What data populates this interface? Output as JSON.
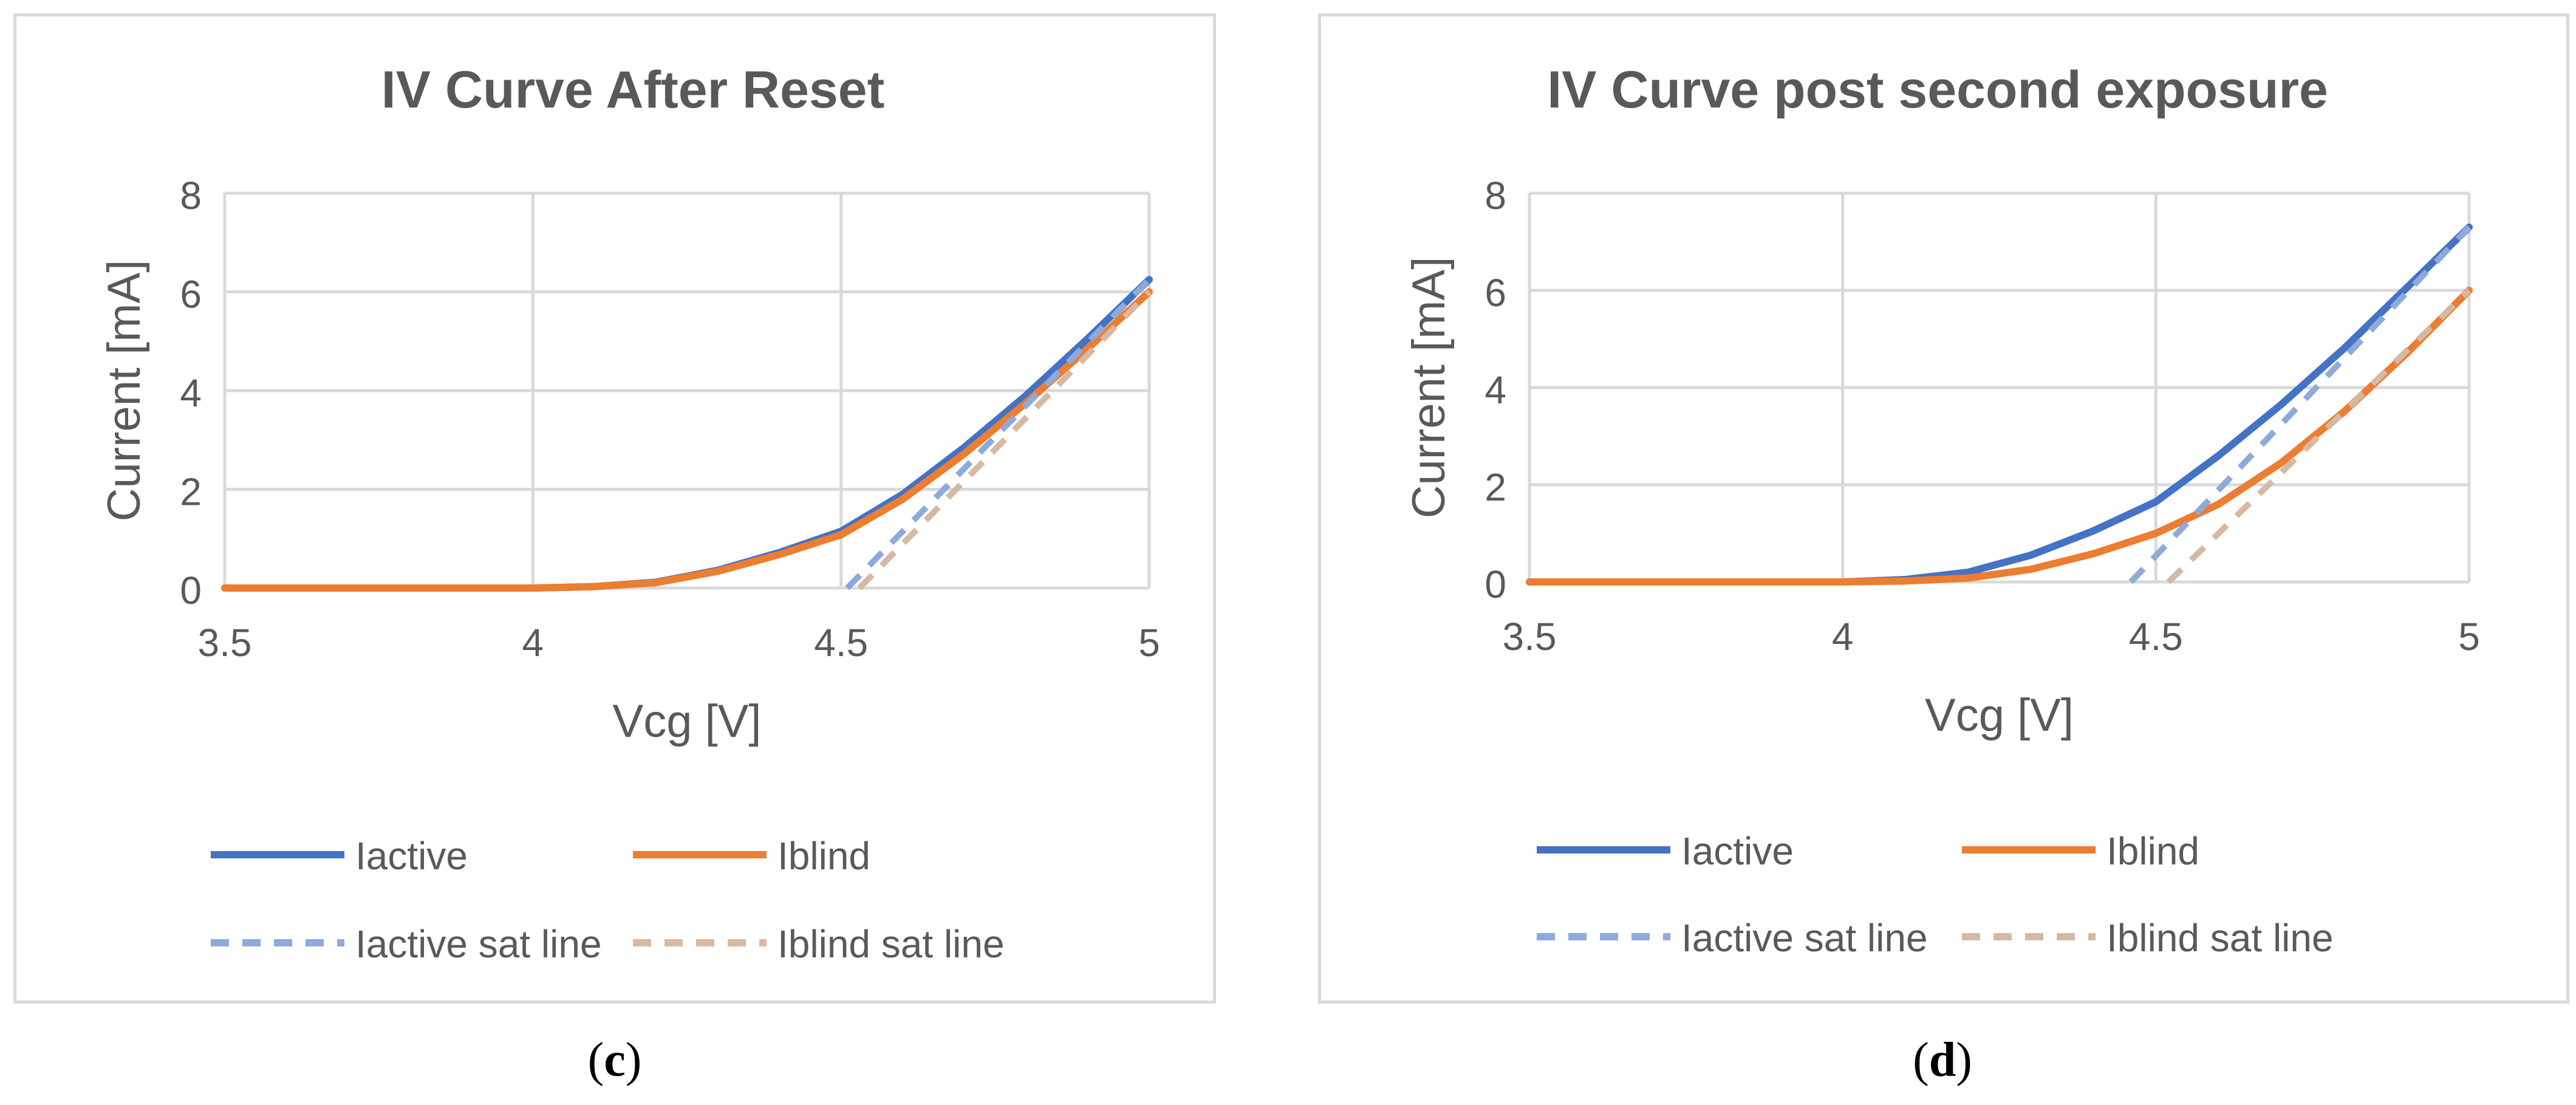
{
  "chart_data": [
    {
      "type": "line",
      "panel_label": "c",
      "title": "IV Curve After Reset",
      "xlabel": "Vcg [V]",
      "ylabel": "Current [mA]",
      "xlim": [
        3.5,
        5
      ],
      "ylim": [
        0,
        8
      ],
      "x_ticks": [
        "3.5",
        "4",
        "4.5",
        "5"
      ],
      "y_ticks": [
        "0",
        "2",
        "4",
        "6",
        "8"
      ],
      "grid": true,
      "legend_position": "bottom",
      "series": [
        {
          "name": "Iactive",
          "style": "solid",
          "color": "#4472c4",
          "x": [
            3.5,
            3.75,
            4.0,
            4.1,
            4.2,
            4.3,
            4.4,
            4.5,
            4.6,
            4.7,
            4.8,
            4.9,
            5.0
          ],
          "y": [
            0,
            0,
            0,
            0.03,
            0.12,
            0.36,
            0.72,
            1.15,
            1.9,
            2.85,
            3.9,
            5.05,
            6.25
          ]
        },
        {
          "name": "Iblind",
          "style": "solid",
          "color": "#ed7d31",
          "x": [
            3.5,
            3.75,
            4.0,
            4.1,
            4.2,
            4.3,
            4.4,
            4.5,
            4.6,
            4.7,
            4.8,
            4.9,
            5.0
          ],
          "y": [
            0,
            0,
            0,
            0.03,
            0.11,
            0.34,
            0.68,
            1.08,
            1.8,
            2.72,
            3.75,
            4.85,
            6.0
          ]
        },
        {
          "name": "Iactive sat line",
          "style": "dashed",
          "color": "#8eaadb",
          "x": [
            4.51,
            5.0
          ],
          "y": [
            0,
            6.25
          ]
        },
        {
          "name": "Iblind sat line",
          "style": "dashed",
          "color": "#d6b9a2",
          "x": [
            4.53,
            5.0
          ],
          "y": [
            0,
            6.0
          ]
        }
      ]
    },
    {
      "type": "line",
      "panel_label": "d",
      "title": "IV Curve post second exposure",
      "xlabel": "Vcg [V]",
      "ylabel": "Current [mA]",
      "xlim": [
        3.5,
        5
      ],
      "ylim": [
        0,
        8
      ],
      "x_ticks": [
        "3.5",
        "4",
        "4.5",
        "5"
      ],
      "y_ticks": [
        "0",
        "2",
        "4",
        "6",
        "8"
      ],
      "grid": true,
      "legend_position": "bottom",
      "series": [
        {
          "name": "Iactive",
          "style": "solid",
          "color": "#4472c4",
          "x": [
            3.5,
            3.75,
            4.0,
            4.1,
            4.2,
            4.3,
            4.4,
            4.5,
            4.6,
            4.7,
            4.8,
            4.9,
            5.0
          ],
          "y": [
            0,
            0,
            0,
            0.05,
            0.2,
            0.55,
            1.05,
            1.65,
            2.6,
            3.65,
            4.8,
            6.05,
            7.3
          ]
        },
        {
          "name": "Iblind",
          "style": "solid",
          "color": "#ed7d31",
          "x": [
            3.5,
            3.75,
            4.0,
            4.1,
            4.2,
            4.3,
            4.4,
            4.5,
            4.6,
            4.7,
            4.8,
            4.9,
            5.0
          ],
          "y": [
            0,
            0,
            0,
            0.02,
            0.08,
            0.26,
            0.58,
            1.0,
            1.6,
            2.45,
            3.5,
            4.7,
            6.0
          ]
        },
        {
          "name": "Iactive sat line",
          "style": "dashed",
          "color": "#8eaadb",
          "x": [
            4.46,
            5.0
          ],
          "y": [
            0,
            7.3
          ]
        },
        {
          "name": "Iblind sat line",
          "style": "dashed",
          "color": "#d6b9a2",
          "x": [
            4.52,
            5.0
          ],
          "y": [
            0,
            6.0
          ]
        }
      ]
    }
  ]
}
